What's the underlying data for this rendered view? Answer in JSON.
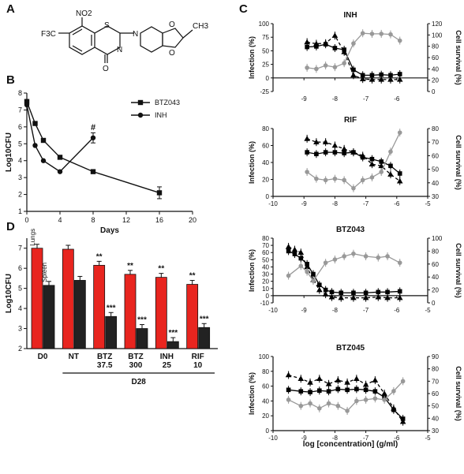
{
  "panel_labels": {
    "a": "A",
    "b": "B",
    "c": "C",
    "d": "D"
  },
  "structure": {
    "no2": "NO2",
    "cf3": "F3C",
    "s": "S",
    "n1": "N",
    "n2": "N",
    "o1": "O",
    "o2": "O",
    "o3": "O",
    "ch3": "CH3"
  },
  "chart_data": [
    {
      "id": "B",
      "type": "line",
      "ylabel": "Log10CFU",
      "xlabel": "Days",
      "xlim": [
        0,
        20
      ],
      "ylim": [
        1,
        8
      ],
      "xticks": [
        0,
        4,
        8,
        12,
        16,
        20
      ],
      "yticks": [
        1,
        2,
        3,
        4,
        5,
        6,
        7,
        8
      ],
      "legend_position": "top-right",
      "series": [
        {
          "name": "BTZ043",
          "marker": "square",
          "x": [
            0,
            1,
            2,
            4,
            8,
            16
          ],
          "y": [
            7.5,
            6.2,
            5.2,
            4.2,
            3.35,
            2.1
          ]
        },
        {
          "name": "INH",
          "marker": "circle",
          "x": [
            0,
            1,
            2,
            4,
            8
          ],
          "y": [
            7.3,
            4.9,
            4.0,
            3.35,
            5.35
          ]
        }
      ],
      "annotations": [
        "#"
      ]
    },
    {
      "id": "D",
      "type": "bar",
      "ylabel": "Log10CFU",
      "ylim": [
        2,
        7.5
      ],
      "yticks": [
        2,
        3,
        4,
        5,
        6,
        7
      ],
      "groups": [
        "D0",
        "NT",
        "BTZ\n37.5",
        "BTZ\n300",
        "INH\n25",
        "RIF\n10"
      ],
      "group_label": "D28",
      "inline_labels": [
        "Lungs",
        "Spleen"
      ],
      "series": [
        {
          "name": "Lungs",
          "color": "#e8251f",
          "values": [
            7.0,
            6.95,
            6.15,
            5.7,
            5.55,
            5.2
          ],
          "marks": [
            "",
            "",
            "**",
            "**",
            "**",
            "**"
          ]
        },
        {
          "name": "Spleen",
          "color": "#222222",
          "values": [
            5.15,
            5.4,
            3.6,
            3.0,
            2.35,
            3.05
          ],
          "marks": [
            "",
            "",
            "***",
            "***",
            "***",
            "***"
          ]
        }
      ]
    },
    {
      "id": "C",
      "type": "line",
      "xlabel": "log [concentration] (g/ml)",
      "xticks": [
        -10,
        -9,
        -8,
        -7,
        -6,
        -5
      ],
      "ylabel_left": "Infection (%)",
      "ylabel_right": "Cell survival (%)",
      "colors": {
        "infection": "#000000",
        "survival": "#999999"
      },
      "subplots": [
        {
          "title": "INH",
          "ylim": [
            -25,
            100
          ],
          "yticks": [
            -25,
            0,
            25,
            50,
            75,
            100
          ],
          "ylim_right": [
            0,
            120
          ],
          "yticks_right": [
            0,
            20,
            40,
            60,
            80,
            100,
            120
          ],
          "series": [
            {
              "marker": "square",
              "axis": "left",
              "x": [
                -8.9,
                -8.6,
                -8.3,
                -8.0,
                -7.7,
                -7.4,
                -7.1,
                -6.8,
                -6.5,
                -6.2,
                -5.9
              ],
              "y": [
                57,
                58,
                62,
                55,
                52,
                15,
                5,
                5,
                6,
                5,
                7
              ]
            },
            {
              "marker": "triangle",
              "axis": "left",
              "x": [
                -8.9,
                -8.6,
                -8.3,
                -8.0,
                -7.7,
                -7.4,
                -7.1,
                -6.8,
                -6.5,
                -6.2,
                -5.9
              ],
              "y": [
                66,
                63,
                64,
                78,
                48,
                5,
                -2,
                -3,
                -3,
                -3,
                -3
              ]
            },
            {
              "marker": "circle",
              "axis": "right",
              "x": [
                -8.9,
                -8.6,
                -8.3,
                -8.0,
                -7.7,
                -7.4,
                -7.1,
                -6.8,
                -6.5,
                -6.2,
                -5.9
              ],
              "y": [
                42,
                40,
                46,
                43,
                50,
                85,
                103,
                102,
                102,
                101,
                90
              ]
            }
          ]
        },
        {
          "title": "RIF",
          "ylim": [
            0,
            80
          ],
          "yticks": [
            0,
            20,
            40,
            60,
            80
          ],
          "ylim_right": [
            30,
            80
          ],
          "yticks_right": [
            30,
            40,
            50,
            60,
            70,
            80
          ],
          "series": [
            {
              "marker": "square",
              "axis": "left",
              "x": [
                -8.9,
                -8.6,
                -8.3,
                -8.0,
                -7.7,
                -7.4,
                -7.1,
                -6.8,
                -6.5,
                -6.2,
                -5.9
              ],
              "y": [
                52,
                50,
                52,
                52,
                51,
                52,
                46,
                44,
                41,
                36,
                27
              ]
            },
            {
              "marker": "triangle",
              "axis": "left",
              "x": [
                -8.9,
                -8.6,
                -8.3,
                -8.0,
                -7.7,
                -7.4,
                -7.1,
                -6.8,
                -6.5,
                -6.2,
                -5.9
              ],
              "y": [
                68,
                64,
                64,
                60,
                56,
                52,
                48,
                38,
                36,
                26,
                18
              ]
            },
            {
              "marker": "circle",
              "axis": "right",
              "x": [
                -8.9,
                -8.6,
                -8.3,
                -8.0,
                -7.7,
                -7.4,
                -7.1,
                -6.8,
                -6.5,
                -6.2,
                -5.9
              ],
              "y": [
                48,
                43,
                42,
                43,
                42,
                36,
                42,
                44,
                48,
                63,
                77
              ]
            }
          ]
        },
        {
          "title": "BTZ043",
          "ylim": [
            -10,
            80
          ],
          "yticks": [
            -10,
            0,
            10,
            20,
            30,
            40,
            50,
            60,
            70,
            80
          ],
          "ylim_right": [
            0,
            100
          ],
          "yticks_right": [
            0,
            20,
            40,
            60,
            80,
            100
          ],
          "series": [
            {
              "marker": "square",
              "axis": "left",
              "x": [
                -9.5,
                -9.3,
                -9.1,
                -8.9,
                -8.7,
                -8.5,
                -8.3,
                -8.1,
                -7.8,
                -7.4,
                -7.0,
                -6.6,
                -6.3,
                -5.9
              ],
              "y": [
                62,
                58,
                52,
                44,
                30,
                15,
                8,
                5,
                4,
                4,
                4,
                5,
                5,
                6
              ]
            },
            {
              "marker": "triangle",
              "axis": "left",
              "x": [
                -9.5,
                -9.3,
                -9.1,
                -8.9,
                -8.7,
                -8.5,
                -8.3,
                -8.1,
                -7.8,
                -7.4,
                -7.0,
                -6.6,
                -6.3,
                -5.9
              ],
              "y": [
                68,
                64,
                60,
                40,
                22,
                8,
                2,
                -2,
                -3,
                -3,
                -3,
                -2,
                -3,
                -3
              ]
            },
            {
              "marker": "circle",
              "axis": "right",
              "x": [
                -9.5,
                -9.1,
                -8.9,
                -8.7,
                -8.3,
                -8.0,
                -7.7,
                -7.4,
                -7.0,
                -6.6,
                -6.3,
                -5.9
              ],
              "y": [
                42,
                57,
                48,
                34,
                62,
                67,
                72,
                76,
                72,
                70,
                72,
                62
              ]
            }
          ]
        },
        {
          "title": "BTZ045",
          "ylim": [
            0,
            100
          ],
          "yticks": [
            0,
            20,
            40,
            60,
            80,
            100
          ],
          "ylim_right": [
            30,
            90
          ],
          "yticks_right": [
            30,
            40,
            50,
            60,
            70,
            80,
            90
          ],
          "series": [
            {
              "marker": "square",
              "axis": "left",
              "x": [
                -9.5,
                -9.1,
                -8.8,
                -8.5,
                -8.2,
                -7.9,
                -7.6,
                -7.3,
                -7.0,
                -6.7,
                -6.4,
                -6.1,
                -5.8
              ],
              "y": [
                55,
                53,
                52,
                54,
                53,
                56,
                55,
                56,
                55,
                53,
                45,
                28,
                16
              ]
            },
            {
              "marker": "triangle",
              "axis": "left",
              "x": [
                -9.5,
                -9.1,
                -8.8,
                -8.5,
                -8.2,
                -7.9,
                -7.6,
                -7.3,
                -7.0,
                -6.7,
                -6.4,
                -6.1,
                -5.8
              ],
              "y": [
                75,
                70,
                65,
                70,
                63,
                68,
                65,
                70,
                62,
                68,
                50,
                30,
                12
              ]
            },
            {
              "marker": "circle",
              "axis": "right",
              "x": [
                -9.5,
                -9.1,
                -8.8,
                -8.5,
                -8.2,
                -7.9,
                -7.6,
                -7.3,
                -7.0,
                -6.7,
                -6.4,
                -6.1,
                -5.8
              ],
              "y": [
                55,
                50,
                52,
                48,
                52,
                50,
                46,
                54,
                55,
                56,
                55,
                62,
                70
              ]
            }
          ]
        }
      ]
    }
  ]
}
